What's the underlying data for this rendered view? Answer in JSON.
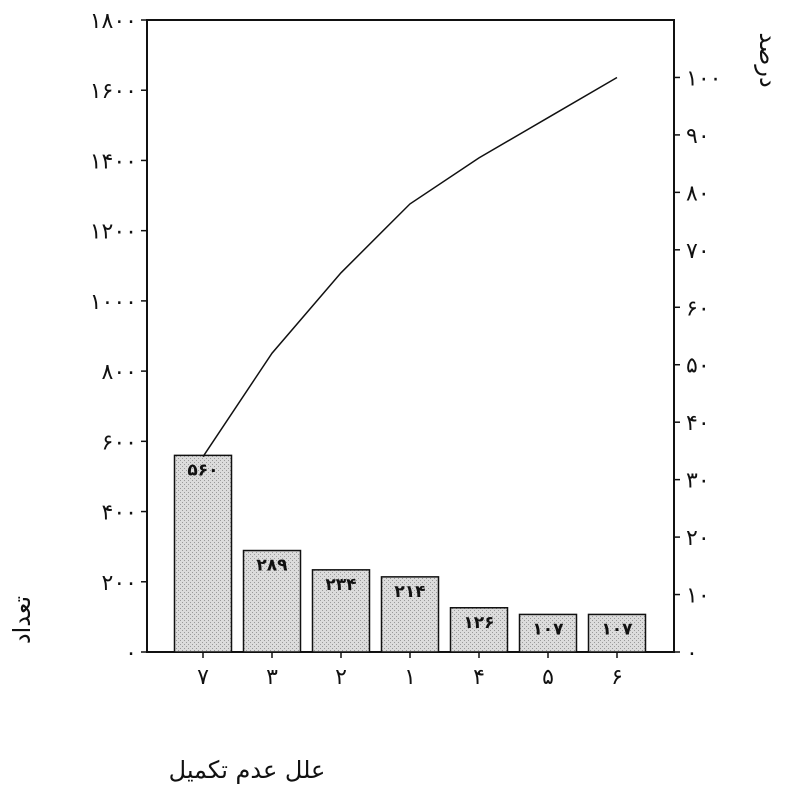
{
  "chart_data": {
    "type": "bar",
    "subtype": "pareto",
    "categories": [
      "۷",
      "۳",
      "۲",
      "۱",
      "۴",
      "۵",
      "۶"
    ],
    "values": [
      560,
      289,
      234,
      214,
      126,
      107,
      107
    ],
    "bar_labels": [
      "۵۶۰",
      "۲۸۹",
      "۲۳۴",
      "۲۱۴",
      "۱۲۶",
      "۱۰۷",
      "۱۰۷"
    ],
    "cumulative_percent": [
      34,
      52,
      66,
      78,
      86,
      93,
      100
    ],
    "xlabel": "علل عدم تکمیل",
    "ylabel": "تعداد",
    "y2label": "درصد",
    "ylim": [
      0,
      1800
    ],
    "y2lim": [
      0,
      110
    ],
    "yticks": [
      0,
      200,
      400,
      600,
      800,
      1000,
      1200,
      1400,
      1600,
      1800
    ],
    "ytick_labels": [
      "۰",
      "۲۰۰",
      "۴۰۰",
      "۶۰۰",
      "۸۰۰",
      "۱۰۰۰",
      "۱۲۰۰",
      "۱۴۰۰",
      "۱۶۰۰",
      "۱۸۰۰"
    ],
    "y2ticks": [
      0,
      10,
      20,
      30,
      40,
      50,
      60,
      70,
      80,
      90,
      100
    ],
    "y2tick_labels": [
      "۰",
      "۱۰",
      "۲۰",
      "۳۰",
      "۴۰",
      "۵۰",
      "۶۰",
      "۷۰",
      "۸۰",
      "۹۰",
      "۱۰۰"
    ],
    "grid": false,
    "colors": {
      "bar_fill": "#d9d9d9",
      "bar_stroke": "#111111",
      "line": "#111111",
      "axis": "#111111"
    }
  }
}
